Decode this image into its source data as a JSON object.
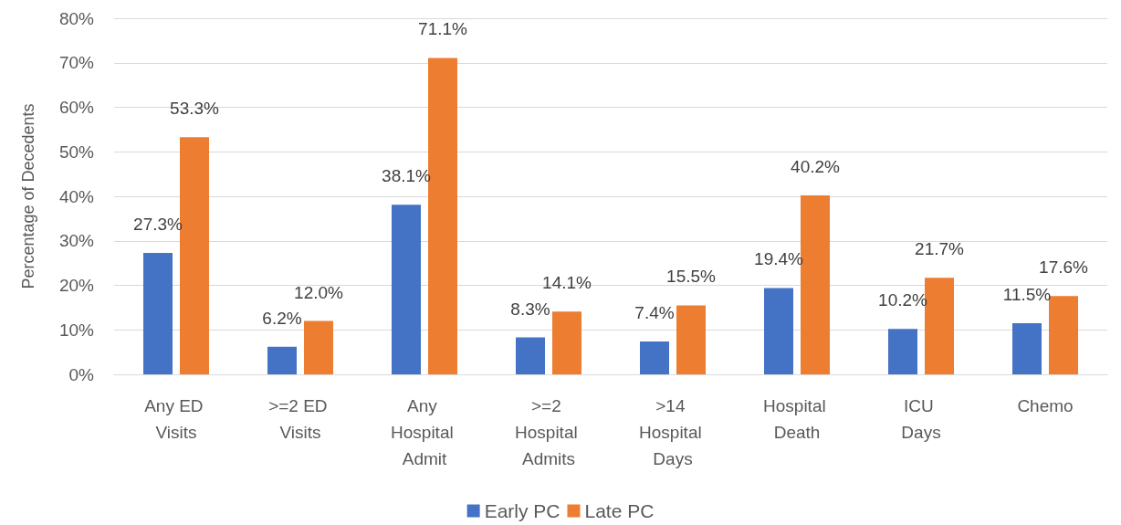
{
  "chart_data": {
    "type": "bar",
    "ylabel": "Percentage of Decedents",
    "categories": [
      "Any ED Visits",
      ">=2 ED Visits",
      "Any Hospital Admit",
      ">=2 Hospital Admits",
      ">14 Hospital Days",
      "Hospital Death",
      "ICU Days",
      "Chemo"
    ],
    "series": [
      {
        "name": "Early PC",
        "color": "#4472c4",
        "values": [
          27.3,
          6.2,
          38.1,
          8.3,
          7.4,
          19.4,
          10.2,
          11.5
        ],
        "value_labels": [
          "27.3%",
          "6.2%",
          "38.1%",
          "8.3%",
          "7.4%",
          "19.4%",
          "10.2%",
          "11.5%"
        ]
      },
      {
        "name": "Late PC",
        "color": "#ed7d31",
        "values": [
          53.3,
          12.0,
          71.1,
          14.1,
          15.5,
          40.2,
          21.7,
          17.6
        ],
        "value_labels": [
          "53.3%",
          "12.0%",
          "71.1%",
          "14.1%",
          "15.5%",
          "40.2%",
          "21.7%",
          "17.6%"
        ]
      }
    ],
    "ylim": [
      0,
      80
    ],
    "yticks": [
      {
        "value": 0,
        "label": "0%"
      },
      {
        "value": 10,
        "label": "10%"
      },
      {
        "value": 20,
        "label": "20%"
      },
      {
        "value": 30,
        "label": "30%"
      },
      {
        "value": 40,
        "label": "40%"
      },
      {
        "value": 50,
        "label": "50%"
      },
      {
        "value": 60,
        "label": "60%"
      },
      {
        "value": 70,
        "label": "70%"
      },
      {
        "value": 80,
        "label": "80%"
      }
    ],
    "grid": "y",
    "legend": "bottom"
  }
}
